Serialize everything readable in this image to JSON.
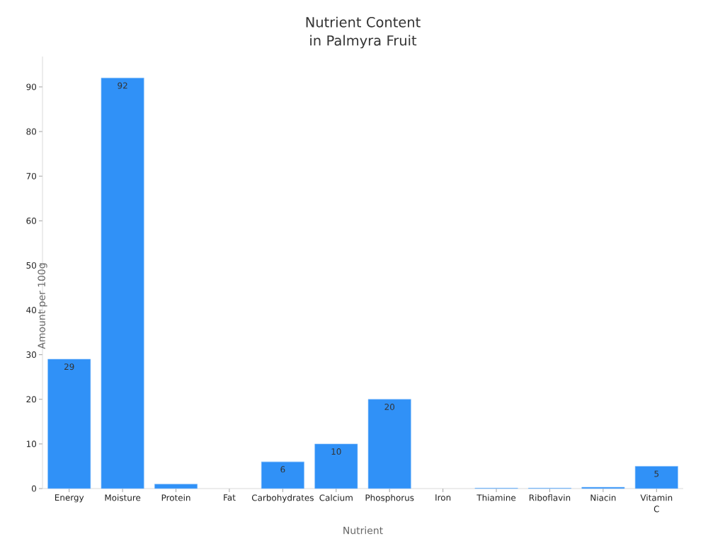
{
  "chart_data": {
    "type": "bar",
    "title": "Nutrient Content in Palmyra Fruit",
    "xlabel": "Nutrient",
    "ylabel": "Amount per 100g",
    "categories": [
      "Energy",
      "Moisture",
      "Protein",
      "Fat",
      "Carbohydrates",
      "Calcium",
      "Phosphorus",
      "Iron",
      "Thiamine",
      "Riboflavin",
      "Niacin",
      "Vitamin C"
    ],
    "values": [
      29,
      92,
      1,
      0,
      6,
      10,
      20,
      0,
      0.1,
      0.1,
      0.3,
      5
    ],
    "value_labels": [
      "29",
      "92",
      null,
      null,
      "6",
      "10",
      "20",
      null,
      null,
      null,
      null,
      "5"
    ],
    "color": "#3091f7",
    "ylim": [
      0,
      96.8
    ],
    "yticks": [
      0,
      10,
      20,
      30,
      40,
      50,
      60,
      70,
      80,
      90
    ]
  }
}
